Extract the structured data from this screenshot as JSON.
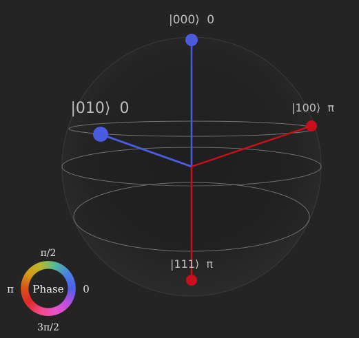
{
  "states": [
    {
      "id": "s000",
      "ket": "|000⟩",
      "phase": "0"
    },
    {
      "id": "s010",
      "ket": "|010⟩",
      "phase": "0"
    },
    {
      "id": "s100",
      "ket": "|100⟩",
      "phase": "π"
    },
    {
      "id": "s111",
      "ket": "|111⟩",
      "phase": "π"
    }
  ],
  "colors": {
    "phase_zero": "#4a5be0",
    "phase_pi": "#c8101d",
    "sphere_line": "#8a8a8a",
    "background": "#242424"
  },
  "phase_wheel": {
    "center_label": "Phase",
    "top": "π/2",
    "left": "π",
    "right": "0",
    "bottom": "3π/2"
  }
}
